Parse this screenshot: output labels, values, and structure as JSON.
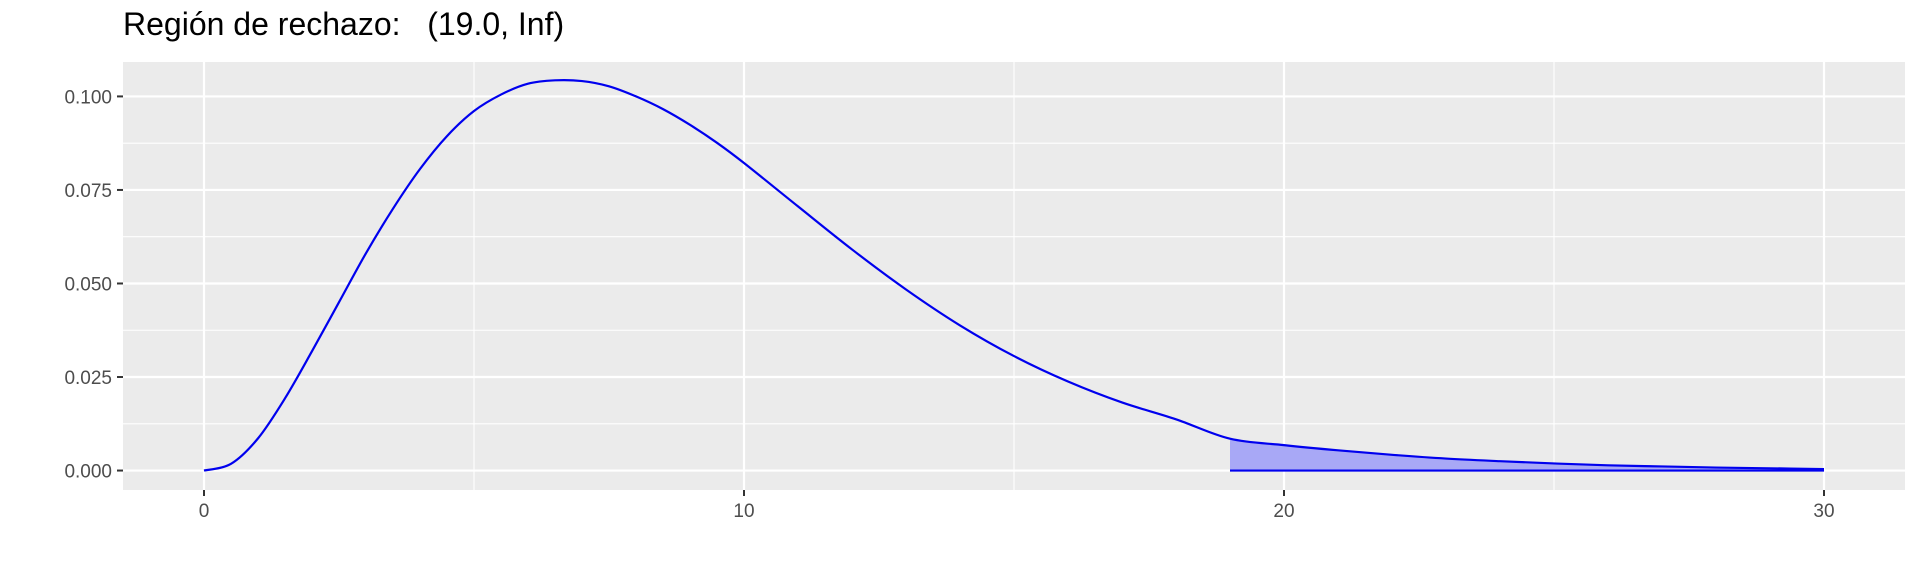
{
  "chart_data": {
    "type": "area",
    "title": "Región de rechazo:   (19.0, Inf)",
    "xlabel": "",
    "ylabel": "",
    "xlim": [
      -1.5,
      31.5
    ],
    "ylim": [
      -0.0052,
      0.1092
    ],
    "x_ticks": [
      0,
      10,
      20,
      30
    ],
    "x_tick_labels": [
      "0",
      "10",
      "20",
      "30"
    ],
    "y_ticks": [
      0.0,
      0.025,
      0.05,
      0.075,
      0.1
    ],
    "y_tick_labels": [
      "0.000",
      "0.025",
      "0.050",
      "0.075",
      "0.100"
    ],
    "grid": true,
    "legend": "none",
    "rejection_region": {
      "from": 19.0,
      "to": "Inf"
    },
    "series": [
      {
        "x": [
          0,
          0.5,
          1,
          1.5,
          2,
          2.5,
          3,
          3.5,
          4,
          4.5,
          5,
          5.5,
          6,
          6.5,
          7,
          7.5,
          8,
          8.5,
          9,
          9.5,
          10,
          11,
          12,
          13,
          14,
          15,
          16,
          17,
          18,
          19,
          20,
          21,
          22,
          23,
          24,
          25,
          26,
          27,
          28,
          29,
          30
        ],
        "y": [
          0.0,
          0.0018,
          0.0086,
          0.0193,
          0.0319,
          0.045,
          0.0581,
          0.07,
          0.0806,
          0.0894,
          0.0961,
          0.1005,
          0.1034,
          0.1043,
          0.1041,
          0.1027,
          0.1,
          0.0966,
          0.0924,
          0.0876,
          0.0822,
          0.0706,
          0.0591,
          0.0484,
          0.0388,
          0.0306,
          0.0238,
          0.0182,
          0.0137,
          0.0085,
          0.0068,
          0.0054,
          0.0042,
          0.0032,
          0.0025,
          0.0019,
          0.0014,
          0.0011,
          0.0008,
          0.0006,
          0.0004
        ]
      }
    ],
    "colors": {
      "line": "#0000ee",
      "fill": "#a8a8f6",
      "panel": "#ebebeb",
      "grid": "#ffffff"
    }
  }
}
